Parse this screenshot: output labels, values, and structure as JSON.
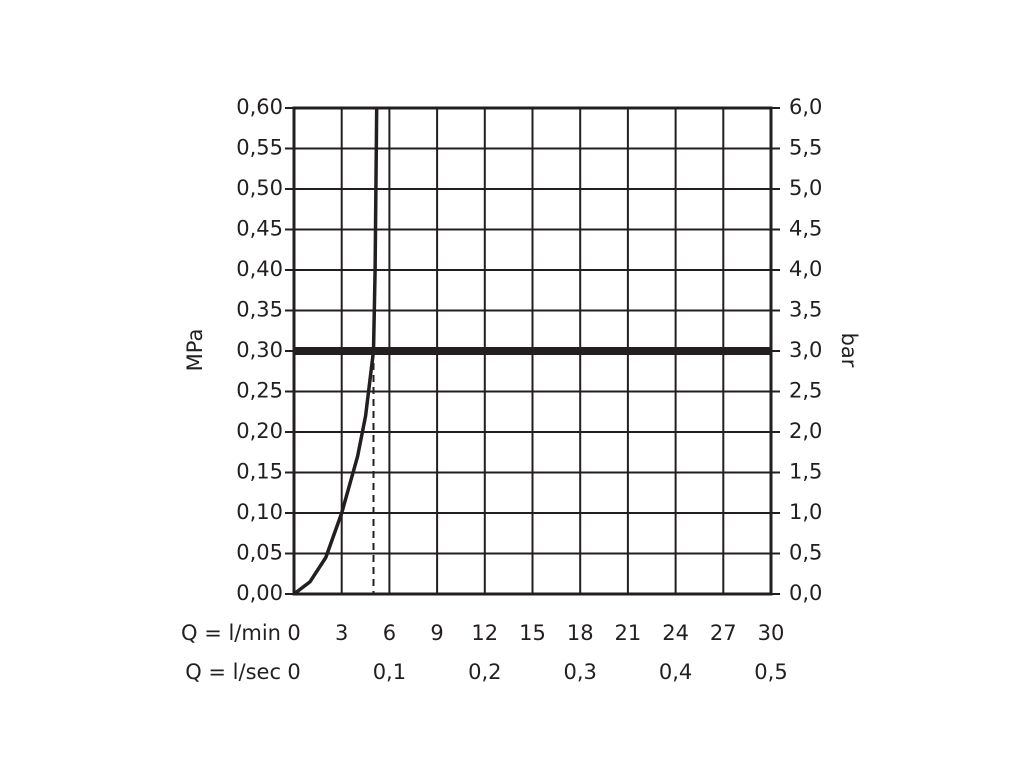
{
  "chart_data": {
    "type": "line",
    "x_label": "Q = l/min",
    "x2_label": "Q = l/sec",
    "y_label": "MPa",
    "y2_label": "bar",
    "x": [
      0,
      1,
      2,
      3,
      4,
      4.5,
      5,
      5.1,
      5.2
    ],
    "series": [
      {
        "color": "#231f20",
        "values": [
          0,
          0.015,
          0.045,
          0.1,
          0.17,
          0.22,
          0.3,
          0.4,
          0.6
        ]
      }
    ],
    "threshold": {
      "x": 5,
      "y": 0.3
    },
    "xlim": [
      0,
      30
    ],
    "xticks": [
      0,
      3,
      6,
      9,
      12,
      15,
      18,
      21,
      24,
      27,
      30
    ],
    "x2lim": [
      0,
      0.5
    ],
    "x2ticks": [
      0,
      {
        "value": 0.1,
        "label": "0,1"
      },
      {
        "value": 0.2,
        "label": "0,2"
      },
      {
        "value": 0.3,
        "label": "0,3"
      },
      {
        "value": 0.4,
        "label": "0,4"
      },
      {
        "value": 0.5,
        "label": "0,5"
      }
    ],
    "ylim": [
      0,
      0.6
    ],
    "yticks": [
      {
        "value": 0,
        "label": "0,00"
      },
      {
        "value": 0.05,
        "label": "0,05"
      },
      {
        "value": 0.1,
        "label": "0,10"
      },
      {
        "value": 0.15,
        "label": "0,15"
      },
      {
        "value": 0.2,
        "label": "0,20"
      },
      {
        "value": 0.25,
        "label": "0,25"
      },
      {
        "value": 0.3,
        "label": "0,30"
      },
      {
        "value": 0.35,
        "label": "0,35"
      },
      {
        "value": 0.4,
        "label": "0,40"
      },
      {
        "value": 0.45,
        "label": "0,45"
      },
      {
        "value": 0.5,
        "label": "0,50"
      },
      {
        "value": 0.55,
        "label": "0,55"
      },
      {
        "value": 0.6,
        "label": "0,60"
      }
    ],
    "y2lim": [
      0,
      6
    ],
    "y2ticks": [
      {
        "value": 0,
        "label": "0,0"
      },
      {
        "value": 0.5,
        "label": "0,5"
      },
      {
        "value": 1,
        "label": "1,0"
      },
      {
        "value": 1.5,
        "label": "1,5"
      },
      {
        "value": 2,
        "label": "2,0"
      },
      {
        "value": 2.5,
        "label": "2,5"
      },
      {
        "value": 3,
        "label": "3,0"
      },
      {
        "value": 3.5,
        "label": "3,5"
      },
      {
        "value": 4,
        "label": "4,0"
      },
      {
        "value": 4.5,
        "label": "4,5"
      },
      {
        "value": 5,
        "label": "5,0"
      },
      {
        "value": 5.5,
        "label": "5,5"
      },
      {
        "value": 6,
        "label": "6,0"
      }
    ],
    "grid": true
  }
}
